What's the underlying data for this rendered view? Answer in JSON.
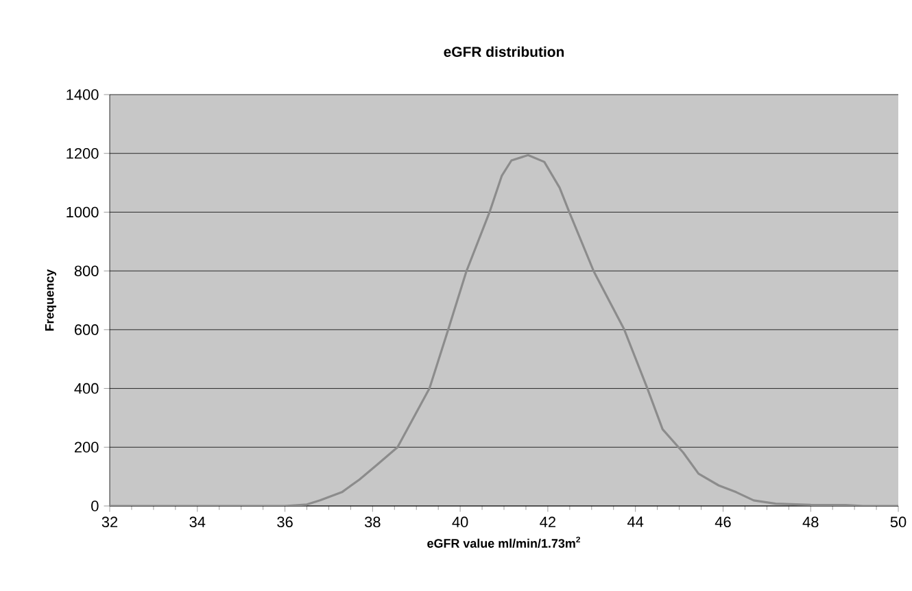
{
  "chart_data": {
    "type": "line",
    "title": "eGFR  distribution",
    "xlabel": "eGFR  value  ml/min/1.73m$^{2}$",
    "ylabel": "Frequency",
    "xlim": [
      32,
      50
    ],
    "xticks": [
      32,
      34,
      36,
      38,
      40,
      42,
      44,
      46,
      48,
      50
    ],
    "ylim": [
      0,
      1400
    ],
    "yticks": [
      0,
      200,
      400,
      600,
      800,
      1000,
      1200,
      1400
    ],
    "grid": "y",
    "series": [
      {
        "color": "#8c8c8c",
        "x": [
          32,
          34,
          36,
          36.5,
          36.8,
          37.3,
          37.7,
          38.1,
          38.57,
          39.3,
          39.73,
          40.14,
          40.67,
          40.95,
          41.17,
          41.55,
          41.92,
          42.27,
          42.49,
          43.05,
          43.74,
          44.27,
          44.62,
          45.09,
          45.44,
          45.9,
          46.3,
          46.7,
          47.2,
          48,
          48.8,
          49.2,
          50
        ],
        "values": [
          0,
          0,
          0,
          5,
          19,
          47,
          90,
          140,
          200,
          401,
          602,
          798,
          1000,
          1124,
          1176,
          1194,
          1171,
          1083,
          1000,
          798,
          602,
          401,
          261,
          182,
          110,
          70,
          47,
          19,
          8,
          4,
          3,
          0,
          0
        ]
      }
    ]
  }
}
